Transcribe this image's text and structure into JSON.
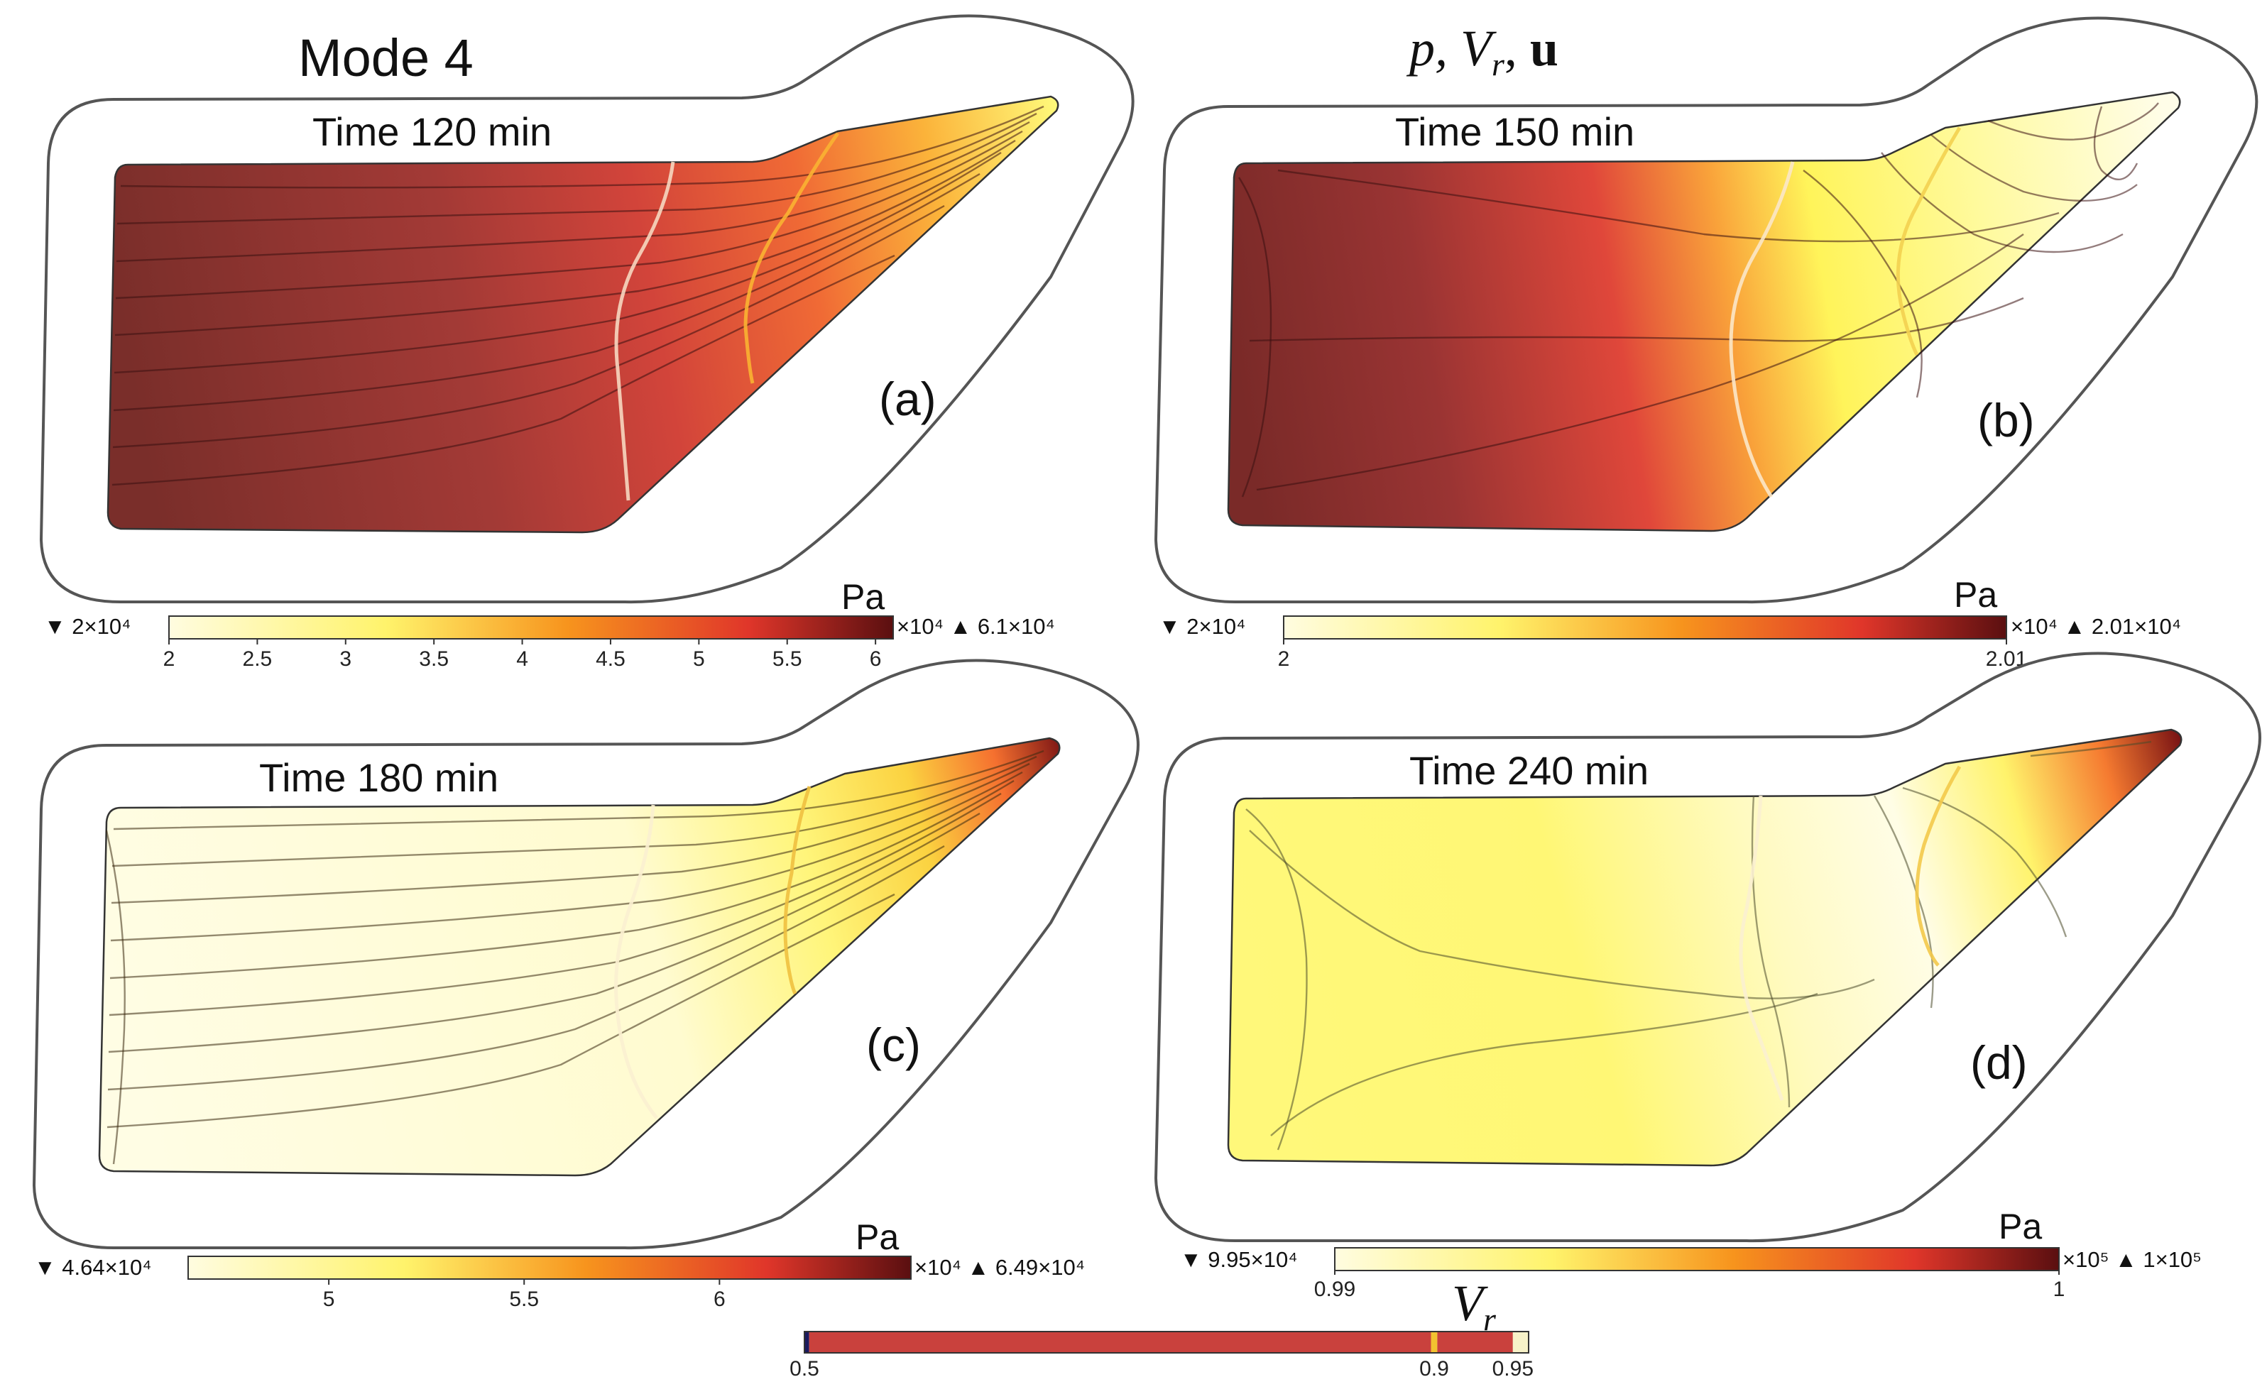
{
  "figure": {
    "mode_title": "Mode 4",
    "variables_title": "p, Vr, u"
  },
  "panels": [
    {
      "label": "(a)",
      "time": "Time 120 min",
      "colorbar": {
        "unit": "Pa",
        "min_label": "▼ 2×10⁴",
        "max_label": "×10⁴ ▲ 6.1×10⁴",
        "ticks": [
          "2",
          "2.5",
          "3",
          "3.5",
          "4",
          "4.5",
          "5",
          "5.5",
          "6"
        ],
        "range": [
          2,
          6.1
        ]
      }
    },
    {
      "label": "(b)",
      "time": "Time 150 min",
      "colorbar": {
        "unit": "Pa",
        "min_label": "▼ 2×10⁴",
        "max_label": "×10⁴ ▲ 2.01×10⁴",
        "ticks": [
          "2",
          "2.01"
        ],
        "range": [
          2,
          2.01
        ]
      }
    },
    {
      "label": "(c)",
      "time": "Time 180 min",
      "colorbar": {
        "unit": "Pa",
        "min_label": "▼ 4.64×10⁴",
        "max_label": "×10⁴ ▲ 6.49×10⁴",
        "ticks": [
          "5",
          "5.5",
          "6"
        ],
        "range": [
          4.64,
          6.49
        ]
      }
    },
    {
      "label": "(d)",
      "time": "Time 240 min",
      "colorbar": {
        "unit": "Pa",
        "min_label": "▼ 9.95×10⁴",
        "max_label": "×10⁵ ▲ 1×10⁵",
        "ticks": [
          "0.99",
          "1"
        ],
        "range": [
          0.99,
          1
        ]
      }
    }
  ],
  "vr_legend": {
    "title": "Vr",
    "ticks": [
      "0.5",
      "0.9",
      "0.95"
    ],
    "colors": [
      "#1a1a5e",
      "#c9413d",
      "#f2c230",
      "#f7f2c8"
    ]
  },
  "palette": {
    "dark_red": "#6b1414",
    "red": "#e0362a",
    "orange": "#f7941d",
    "yellow": "#fff36b",
    "pale": "#fffce0"
  }
}
